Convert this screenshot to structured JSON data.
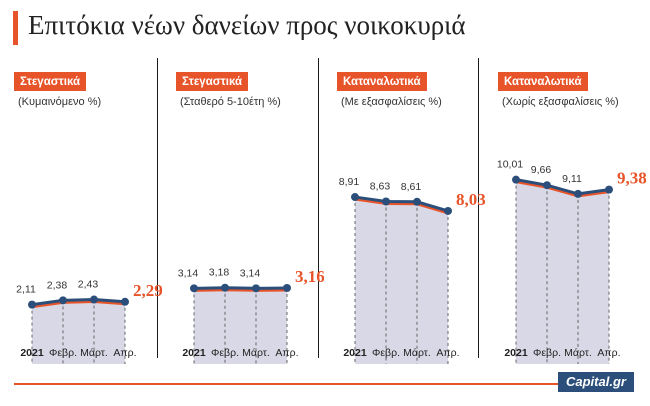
{
  "title": "Επιτόκια νέων δανείων προς νοικοκυριά",
  "logo": "Capital.gr",
  "colors": {
    "accent": "#e8542a",
    "line": "#2b4f7a",
    "fill": "#d9d8e6"
  },
  "chart_data": [
    {
      "type": "area",
      "tag": "Στεγαστικά",
      "subtitle": "(Κυμαινόμενο %)",
      "categories": [
        "2021",
        "Φεβρ.",
        "Μάρτ.",
        "Απρ."
      ],
      "values": [
        2.11,
        2.38,
        2.43,
        2.29
      ],
      "labels": [
        "2,11",
        "2,38",
        "2,43",
        "2,29%"
      ],
      "ylim": [
        0,
        11
      ]
    },
    {
      "type": "area",
      "tag": "Στεγαστικά",
      "subtitle": "(Σταθερό 5-10έτη %)",
      "categories": [
        "2021",
        "Φεβρ.",
        "Μάρτ.",
        "Απρ."
      ],
      "values": [
        3.14,
        3.18,
        3.14,
        3.16
      ],
      "labels": [
        "3,14",
        "3,18",
        "3,14",
        "3,16%"
      ],
      "ylim": [
        0,
        11
      ]
    },
    {
      "type": "area",
      "tag": "Καταναλωτικά",
      "subtitle": "(Με εξασφαλίσεις %)",
      "categories": [
        "2021",
        "Φεβρ.",
        "Μάρτ.",
        "Απρ."
      ],
      "values": [
        8.91,
        8.63,
        8.61,
        8.03
      ],
      "labels": [
        "8,91",
        "8,63",
        "8,61",
        "8,03%"
      ],
      "ylim": [
        0,
        11
      ]
    },
    {
      "type": "area",
      "tag": "Καταναλωτικά",
      "subtitle": "(Χωρίς εξασφαλίσεις %)",
      "categories": [
        "2021",
        "Φεβρ.",
        "Μάρτ.",
        "Απρ."
      ],
      "values": [
        10.01,
        9.66,
        9.11,
        9.38
      ],
      "labels": [
        "10,01",
        "9,66",
        "9,11",
        "9,38%"
      ],
      "ylim": [
        0,
        11
      ]
    }
  ]
}
